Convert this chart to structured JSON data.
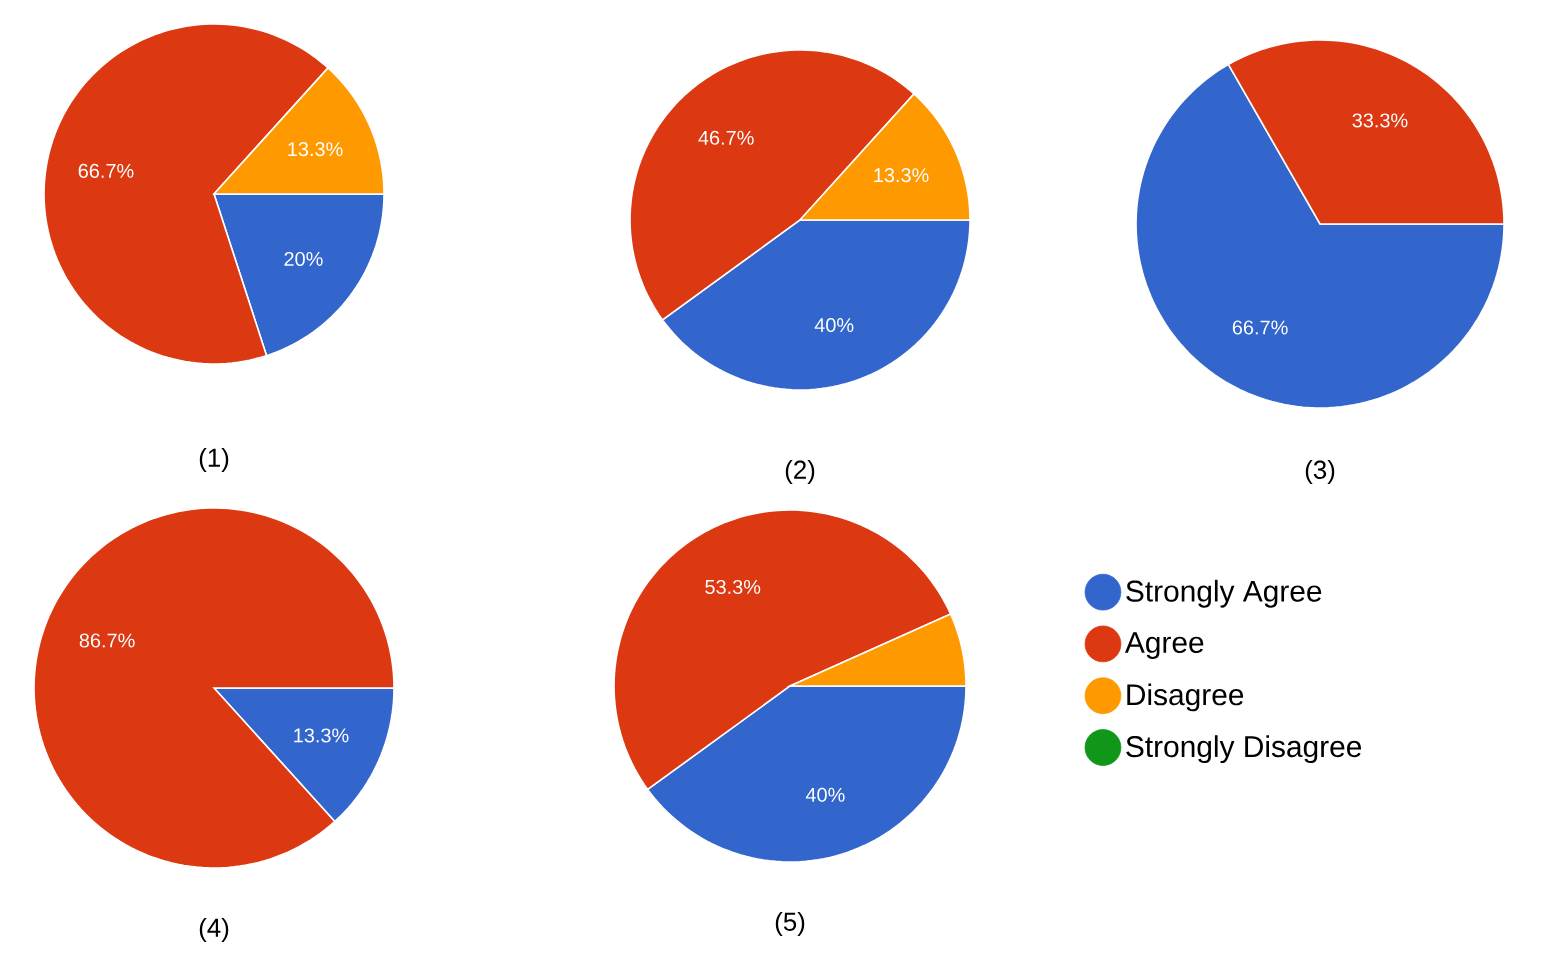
{
  "chart_data": [
    {
      "type": "pie",
      "title": "(1)",
      "categories": [
        null,
        null,
        null,
        null
      ],
      "values": [
        20,
        66.7,
        13.3,
        0
      ],
      "colors": [
        "#3366cc",
        "#dc3912",
        "#ff9900",
        "#109618"
      ],
      "value_labels": [
        "20%",
        "66.7%",
        "13.3%",
        null
      ]
    },
    {
      "type": "pie",
      "title": "(2)",
      "categories": [
        null,
        null,
        null,
        null
      ],
      "values": [
        40,
        46.7,
        13.3,
        0
      ],
      "colors": [
        "#3366cc",
        "#dc3912",
        "#ff9900",
        "#109618"
      ],
      "value_labels": [
        "40%",
        "46.7%",
        "13.3%",
        null
      ]
    },
    {
      "type": "pie",
      "title": "(3)",
      "categories": [
        null,
        null,
        null,
        null
      ],
      "values": [
        66.7,
        33.3,
        0,
        0
      ],
      "colors": [
        "#3366cc",
        "#dc3912",
        "#ff9900",
        "#109618"
      ],
      "value_labels": [
        "66.7%",
        "33.3%",
        null,
        null
      ]
    },
    {
      "type": "pie",
      "title": "(4)",
      "categories": [
        null,
        null,
        null,
        null
      ],
      "values": [
        13.3,
        86.7,
        0,
        0
      ],
      "colors": [
        "#3366cc",
        "#dc3912",
        "#ff9900",
        "#109618"
      ],
      "value_labels": [
        "13.3%",
        "86.7%",
        null,
        null
      ]
    },
    {
      "type": "pie",
      "title": "(5)",
      "categories": [
        "Strongly Agree",
        "Agree",
        "Disagree",
        "Strongly Disagree"
      ],
      "values": [
        40,
        53.3,
        6.7,
        0
      ],
      "colors": [
        "#3366cc",
        "#dc3912",
        "#ff9900",
        "#109618"
      ],
      "value_labels": [
        "40%",
        "53.3%",
        null,
        null
      ],
      "legend": "right"
    }
  ]
}
